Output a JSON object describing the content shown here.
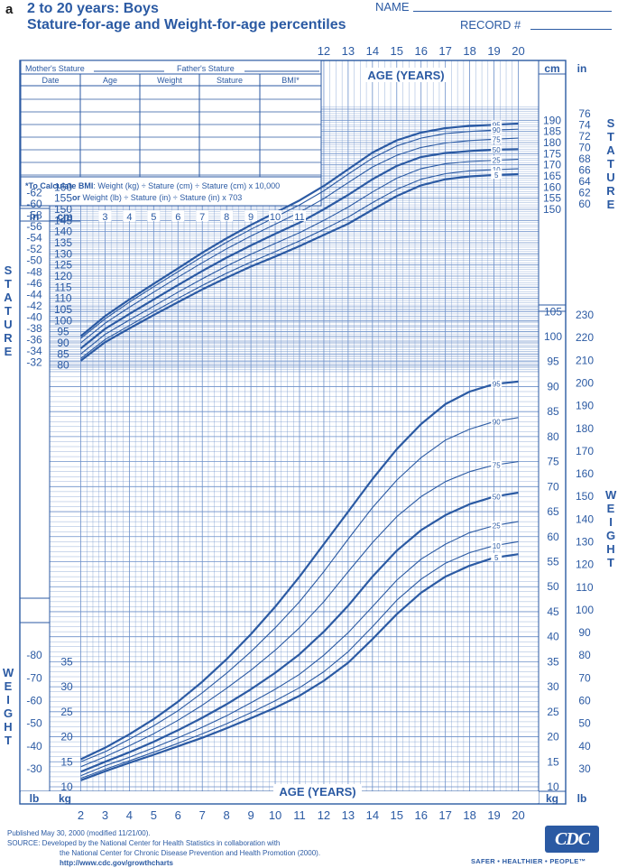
{
  "header": {
    "panel_letter": "a",
    "title_line1": "2 to 20 years: Boys",
    "title_line2": "Stature-for-age and Weight-for-age percentiles",
    "name_label": "NAME",
    "record_label": "RECORD #"
  },
  "record_table": {
    "parent_row": {
      "mother": "Mother's Stature",
      "father": "Father's Stature"
    },
    "columns": [
      "Date",
      "Age",
      "Weight",
      "Stature",
      "BMI*"
    ],
    "row_count": 7,
    "bmi_note_bold": "*To Calculate BMI",
    "bmi_note_1": ": Weight (kg) ÷ Stature (cm) ÷ Stature (cm) x 10,000",
    "bmi_note_or": "or",
    "bmi_note_2": " Weight (lb) ÷ Stature (in) ÷ Stature (in) x 703"
  },
  "side_labels": {
    "stature_letters": [
      "S",
      "T",
      "A",
      "T",
      "U",
      "R",
      "E"
    ],
    "weight_letters": [
      "W",
      "E",
      "I",
      "G",
      "H",
      "T"
    ]
  },
  "footer": {
    "line1": "Published May 30, 2000 (modified 11/21/00).",
    "line2": "SOURCE: Developed by the National Center for Health Statistics in collaboration with",
    "line3": "the National Center for Chronic Disease Prevention and Health Promotion (2000).",
    "url": "http://www.cdc.gov/growthcharts",
    "logo": "CDC",
    "tagline": "SAFER • HEALTHIER • PEOPLE™"
  },
  "colors": {
    "ink": "#2b5aa3",
    "grid": "#6b8fc9",
    "background": "#ffffff"
  },
  "chart_data": [
    {
      "type": "line",
      "title": "Stature-for-age percentiles",
      "xlabel": "AGE (YEARS)",
      "ylabel": "STATURE",
      "x_unit": "years",
      "y_unit": "cm",
      "xlim": [
        2,
        20
      ],
      "ylim": [
        77,
        196
      ],
      "x_ticks": [
        2,
        3,
        4,
        5,
        6,
        7,
        8,
        9,
        10,
        11,
        12,
        13,
        14,
        15,
        16,
        17,
        18,
        19,
        20
      ],
      "cm_ticks_left": [
        80,
        85,
        90,
        95,
        100,
        105,
        110,
        115,
        120,
        125,
        130,
        135,
        140,
        145,
        150,
        155,
        160
      ],
      "in_ticks_left": [
        32,
        34,
        36,
        38,
        40,
        42,
        44,
        46,
        48,
        50,
        52,
        54,
        56,
        58,
        60,
        62
      ],
      "cm_ticks_right": [
        150,
        155,
        160,
        165,
        170,
        175,
        180,
        185,
        190
      ],
      "in_ticks_right": [
        60,
        62,
        64,
        66,
        68,
        70,
        72,
        74,
        76
      ],
      "x": [
        2,
        3,
        4,
        5,
        6,
        7,
        8,
        9,
        10,
        11,
        12,
        13,
        14,
        15,
        16,
        17,
        18,
        19,
        20
      ],
      "series": [
        {
          "name": "95",
          "values": [
            93.0,
            102.0,
            109.5,
            116.5,
            123.5,
            130.5,
            137.0,
            143.0,
            148.5,
            154.0,
            160.5,
            168.0,
            175.5,
            181.0,
            184.5,
            186.5,
            187.5,
            188.0,
            188.5
          ]
        },
        {
          "name": "90",
          "values": [
            92.0,
            100.8,
            108.3,
            115.2,
            122.0,
            128.8,
            135.2,
            141.0,
            146.5,
            152.0,
            158.3,
            165.8,
            173.0,
            178.5,
            182.0,
            184.0,
            185.0,
            185.6,
            186.0
          ]
        },
        {
          "name": "75",
          "values": [
            90.0,
            98.8,
            106.0,
            112.8,
            119.5,
            126.0,
            132.3,
            138.0,
            143.3,
            148.7,
            154.8,
            162.0,
            169.0,
            174.3,
            177.8,
            179.8,
            180.9,
            181.5,
            182.0
          ]
        },
        {
          "name": "50",
          "values": [
            87.5,
            96.3,
            103.0,
            109.5,
            116.0,
            122.3,
            128.3,
            133.8,
            139.0,
            144.0,
            150.0,
            156.5,
            163.5,
            169.5,
            173.5,
            175.3,
            176.2,
            176.8,
            177.0
          ]
        },
        {
          "name": "25",
          "values": [
            85.0,
            93.8,
            100.3,
            106.5,
            112.8,
            118.8,
            124.5,
            129.8,
            134.7,
            139.5,
            145.0,
            151.0,
            157.8,
            164.0,
            168.3,
            170.5,
            171.5,
            172.0,
            172.5
          ]
        },
        {
          "name": "10",
          "values": [
            83.0,
            91.5,
            97.8,
            104.0,
            110.0,
            115.8,
            121.3,
            126.3,
            131.0,
            135.8,
            141.0,
            146.5,
            153.0,
            159.0,
            163.5,
            166.0,
            167.3,
            167.8,
            168.2
          ]
        },
        {
          "name": "5",
          "values": [
            82.0,
            90.3,
            96.5,
            102.5,
            108.3,
            114.0,
            119.3,
            124.3,
            128.8,
            133.5,
            138.5,
            143.5,
            149.8,
            156.0,
            160.8,
            163.5,
            164.8,
            165.4,
            165.8
          ]
        }
      ]
    },
    {
      "type": "line",
      "title": "Weight-for-age percentiles",
      "xlabel": "AGE (YEARS)",
      "ylabel": "WEIGHT",
      "x_unit": "years",
      "y_unit": "kg",
      "xlim": [
        2,
        20
      ],
      "ylim": [
        10,
        108
      ],
      "x_ticks": [
        2,
        3,
        4,
        5,
        6,
        7,
        8,
        9,
        10,
        11,
        12,
        13,
        14,
        15,
        16,
        17,
        18,
        19,
        20
      ],
      "kg_ticks_left": [
        10,
        15,
        20,
        25,
        30,
        35
      ],
      "lb_ticks_left": [
        30,
        40,
        50,
        60,
        70,
        80
      ],
      "kg_ticks_right": [
        10,
        15,
        20,
        25,
        30,
        35,
        40,
        45,
        50,
        55,
        60,
        65,
        70,
        75,
        80,
        85,
        90,
        95,
        100,
        105
      ],
      "lb_ticks_right": [
        30,
        40,
        50,
        60,
        70,
        80,
        90,
        100,
        110,
        120,
        130,
        140,
        150,
        160,
        170,
        180,
        190,
        200,
        210,
        220,
        230
      ],
      "x": [
        2,
        3,
        4,
        5,
        6,
        7,
        8,
        9,
        10,
        11,
        12,
        13,
        14,
        15,
        16,
        17,
        18,
        19,
        20
      ],
      "series": [
        {
          "name": "95",
          "values": [
            15.5,
            17.8,
            20.5,
            23.5,
            27.0,
            31.0,
            35.5,
            40.5,
            46.0,
            52.0,
            58.5,
            65.0,
            71.5,
            77.5,
            82.5,
            86.5,
            89.0,
            90.5,
            91.0
          ]
        },
        {
          "name": "90",
          "values": [
            15.0,
            17.0,
            19.5,
            22.2,
            25.2,
            28.8,
            32.7,
            37.0,
            41.8,
            47.0,
            53.0,
            59.5,
            65.8,
            71.3,
            75.8,
            79.3,
            81.5,
            83.0,
            83.8
          ]
        },
        {
          "name": "75",
          "values": [
            14.0,
            16.0,
            18.2,
            20.6,
            23.3,
            26.3,
            29.7,
            33.3,
            37.3,
            41.8,
            47.0,
            53.0,
            58.8,
            64.0,
            68.0,
            71.0,
            73.0,
            74.3,
            75.0
          ]
        },
        {
          "name": "50",
          "values": [
            13.0,
            15.0,
            16.9,
            19.0,
            21.3,
            23.8,
            26.5,
            29.5,
            32.8,
            36.5,
            41.0,
            46.2,
            52.0,
            57.2,
            61.3,
            64.3,
            66.5,
            68.0,
            68.8
          ]
        },
        {
          "name": "25",
          "values": [
            12.2,
            14.2,
            15.9,
            17.8,
            19.8,
            21.9,
            24.2,
            26.8,
            29.5,
            32.5,
            36.3,
            40.8,
            46.0,
            51.3,
            55.5,
            58.5,
            60.8,
            62.2,
            63.0
          ]
        },
        {
          "name": "10",
          "values": [
            11.7,
            13.5,
            15.2,
            16.9,
            18.7,
            20.6,
            22.6,
            24.8,
            27.2,
            29.8,
            33.0,
            37.0,
            42.0,
            47.3,
            51.5,
            54.7,
            56.8,
            58.2,
            59.0
          ]
        },
        {
          "name": "5",
          "values": [
            11.3,
            13.1,
            14.8,
            16.4,
            18.1,
            19.8,
            21.7,
            23.7,
            25.8,
            28.2,
            31.2,
            34.8,
            39.5,
            44.5,
            48.8,
            52.0,
            54.2,
            55.8,
            56.5
          ]
        }
      ]
    }
  ]
}
